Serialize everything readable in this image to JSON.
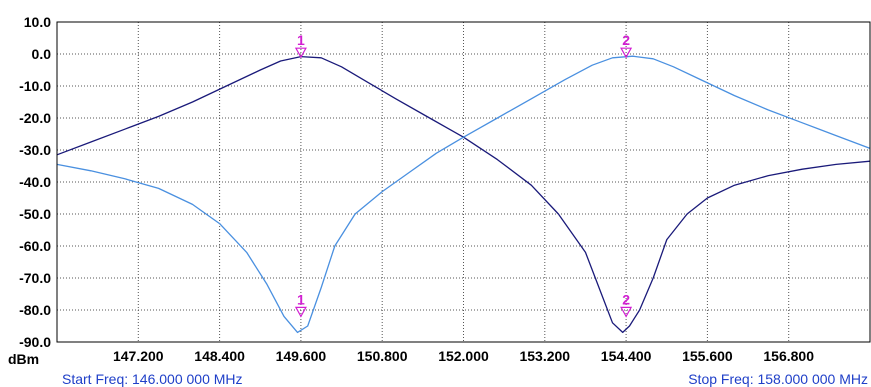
{
  "chart_data": {
    "type": "line",
    "unit_label": "dBm",
    "ylim": [
      -90,
      10
    ],
    "xlim": [
      146.0,
      158.0
    ],
    "y_ticks": [
      "10.0",
      "0.0",
      "-10.0",
      "-20.0",
      "-30.0",
      "-40.0",
      "-50.0",
      "-60.0",
      "-70.0",
      "-80.0",
      "-90.0"
    ],
    "y_tick_values": [
      10,
      0,
      -10,
      -20,
      -30,
      -40,
      -50,
      -60,
      -70,
      -80,
      -90
    ],
    "x_ticks": [
      "147.200",
      "148.400",
      "149.600",
      "150.800",
      "152.000",
      "153.200",
      "154.400",
      "155.600",
      "156.800"
    ],
    "x_tick_values": [
      147.2,
      148.4,
      149.6,
      150.8,
      152.0,
      153.2,
      154.4,
      155.6,
      156.8
    ],
    "grid": true,
    "start_freq_text": "Start Freq: 146.000 000 MHz",
    "stop_freq_text": "Stop Freq: 158.000 000 MHz",
    "series": [
      {
        "color": "#1a1a7a",
        "x": [
          146.0,
          146.5,
          147.0,
          147.5,
          148.0,
          148.5,
          149.0,
          149.3,
          149.6,
          149.9,
          150.2,
          150.6,
          151.0,
          151.5,
          152.0,
          152.5,
          153.0,
          153.4,
          153.8,
          154.0,
          154.2,
          154.35,
          154.45,
          154.6,
          154.8,
          155.0,
          155.3,
          155.6,
          156.0,
          156.5,
          157.0,
          157.5,
          158.0
        ],
        "y": [
          -31.5,
          -27.5,
          -23.5,
          -19.5,
          -15,
          -10,
          -5,
          -2.2,
          -0.8,
          -1.2,
          -4,
          -9,
          -14,
          -20,
          -26,
          -33,
          -41,
          -50,
          -62,
          -73,
          -84,
          -87,
          -85,
          -80,
          -70,
          -58,
          -50,
          -45,
          -41,
          -38,
          -36,
          -34.5,
          -33.5
        ]
      },
      {
        "color": "#4a90e0",
        "x": [
          146.0,
          146.5,
          147.0,
          147.5,
          148.0,
          148.4,
          148.8,
          149.1,
          149.35,
          149.55,
          149.7,
          149.9,
          150.1,
          150.4,
          150.8,
          151.2,
          151.6,
          152.0,
          152.5,
          153.0,
          153.5,
          153.9,
          154.2,
          154.5,
          154.8,
          155.1,
          155.5,
          156.0,
          156.5,
          157.0,
          157.5,
          158.0
        ],
        "y": [
          -34.5,
          -36.5,
          -39,
          -42,
          -47,
          -53,
          -62,
          -72,
          -82,
          -87,
          -85,
          -73,
          -60,
          -50,
          -43,
          -37,
          -31,
          -26,
          -20,
          -14,
          -8,
          -3.5,
          -1.2,
          -0.7,
          -1.5,
          -4,
          -8,
          -13,
          -17.5,
          -21.5,
          -25.5,
          -29.5
        ]
      }
    ],
    "markers": [
      {
        "label": "1",
        "x": 149.6,
        "y": -1.0,
        "color": "#d21fd2"
      },
      {
        "label": "2",
        "x": 154.4,
        "y": -1.0,
        "color": "#d21fd2"
      },
      {
        "label": "1",
        "x": 149.6,
        "y": -82.0,
        "color": "#d21fd2"
      },
      {
        "label": "2",
        "x": 154.4,
        "y": -82.0,
        "color": "#d21fd2"
      }
    ]
  }
}
